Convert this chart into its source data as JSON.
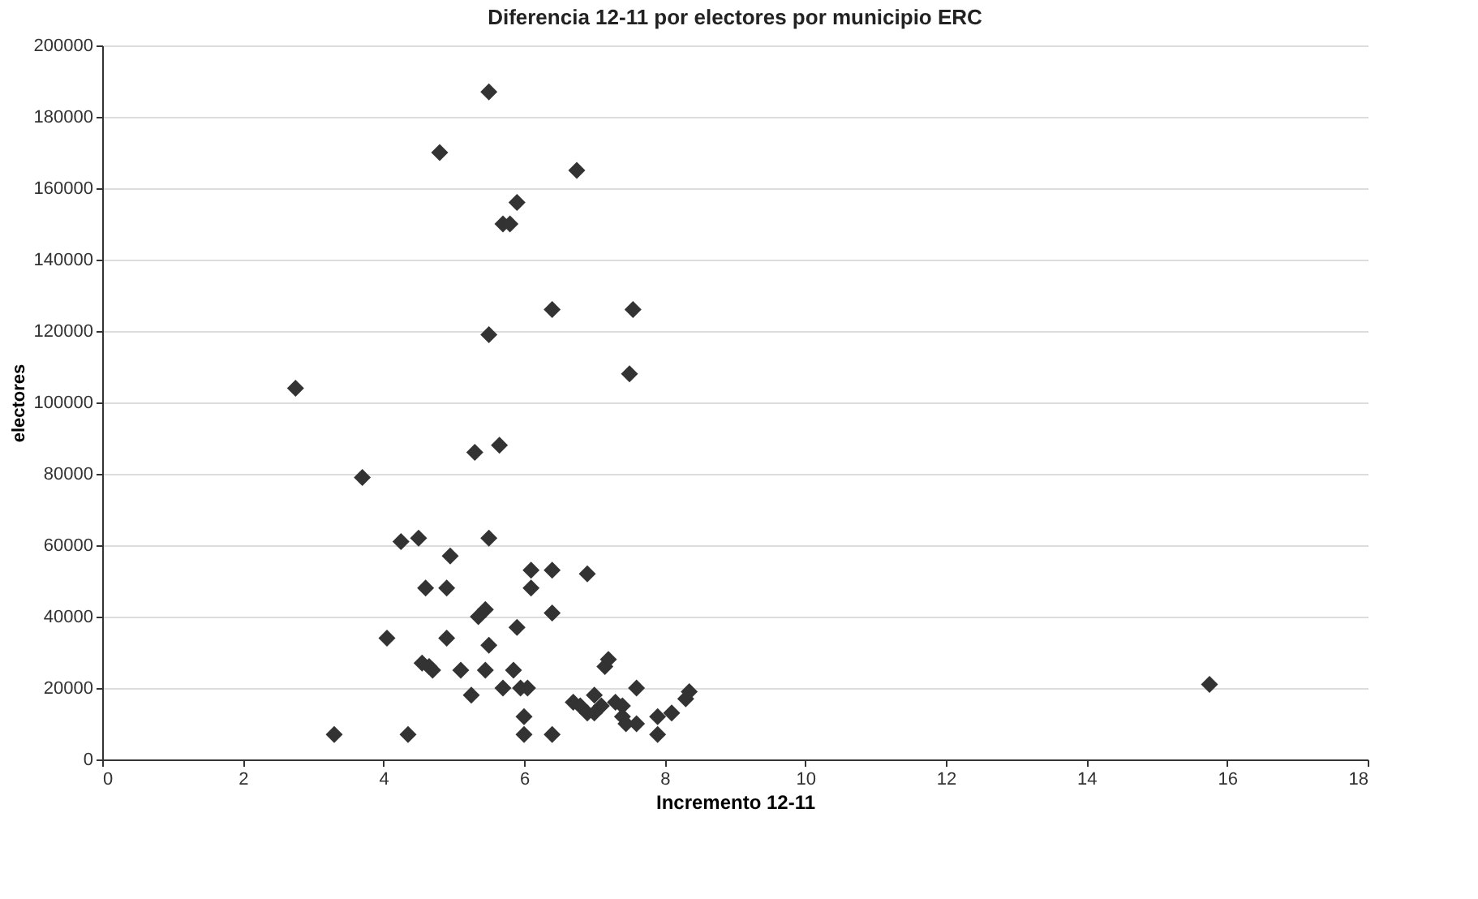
{
  "chart_data": {
    "type": "scatter",
    "title": "Diferencia 12-11 por electores por municipio ERC",
    "xlabel": "Incremento 12-11",
    "ylabel": "electores",
    "x": [
      2.75,
      3.3,
      3.7,
      4.05,
      4.25,
      4.35,
      4.5,
      4.55,
      4.6,
      4.65,
      4.7,
      4.8,
      4.95,
      4.9,
      4.9,
      5.1,
      5.25,
      5.3,
      5.35,
      5.45,
      5.5,
      5.5,
      5.5,
      5.5,
      5.45,
      5.65,
      5.7,
      5.8,
      5.9,
      5.7,
      5.9,
      5.85,
      5.95,
      6.0,
      6.0,
      6.05,
      6.1,
      6.1,
      6.4,
      6.4,
      6.4,
      6.4,
      6.75,
      6.7,
      6.8,
      6.9,
      6.9,
      7.0,
      7.1,
      7.15,
      7.2,
      7.3,
      7.4,
      7.45,
      7.5,
      7.55,
      7.6,
      7.6,
      7.9,
      7.9,
      8.1,
      8.3,
      8.35,
      15.75,
      7.0,
      7.4
    ],
    "series": [
      {
        "color": "#333333",
        "values": [
          104000,
          7000,
          79000,
          34000,
          61000,
          7000,
          62000,
          27000,
          48000,
          26000,
          25000,
          170000,
          57000,
          48000,
          34000,
          25000,
          18000,
          86000,
          40000,
          42000,
          187000,
          119000,
          62000,
          32000,
          25000,
          88000,
          150000,
          150000,
          156000,
          20000,
          37000,
          25000,
          20000,
          12000,
          7000,
          20000,
          48000,
          53000,
          126000,
          53000,
          41000,
          7000,
          165000,
          16000,
          15000,
          52000,
          13000,
          18000,
          15000,
          26000,
          28000,
          16000,
          12000,
          10000,
          108000,
          126000,
          20000,
          10000,
          12000,
          7000,
          13000,
          17000,
          19000,
          21000,
          13000,
          15000
        ]
      }
    ],
    "xlim": [
      0,
      18
    ],
    "xticks": [
      0,
      2,
      4,
      6,
      8,
      10,
      12,
      14,
      16,
      18
    ],
    "ylim": [
      0,
      200000
    ],
    "yticks": [
      0,
      20000,
      40000,
      60000,
      80000,
      100000,
      120000,
      140000,
      160000,
      180000,
      200000
    ],
    "grid": "y",
    "marker": "diamond"
  }
}
